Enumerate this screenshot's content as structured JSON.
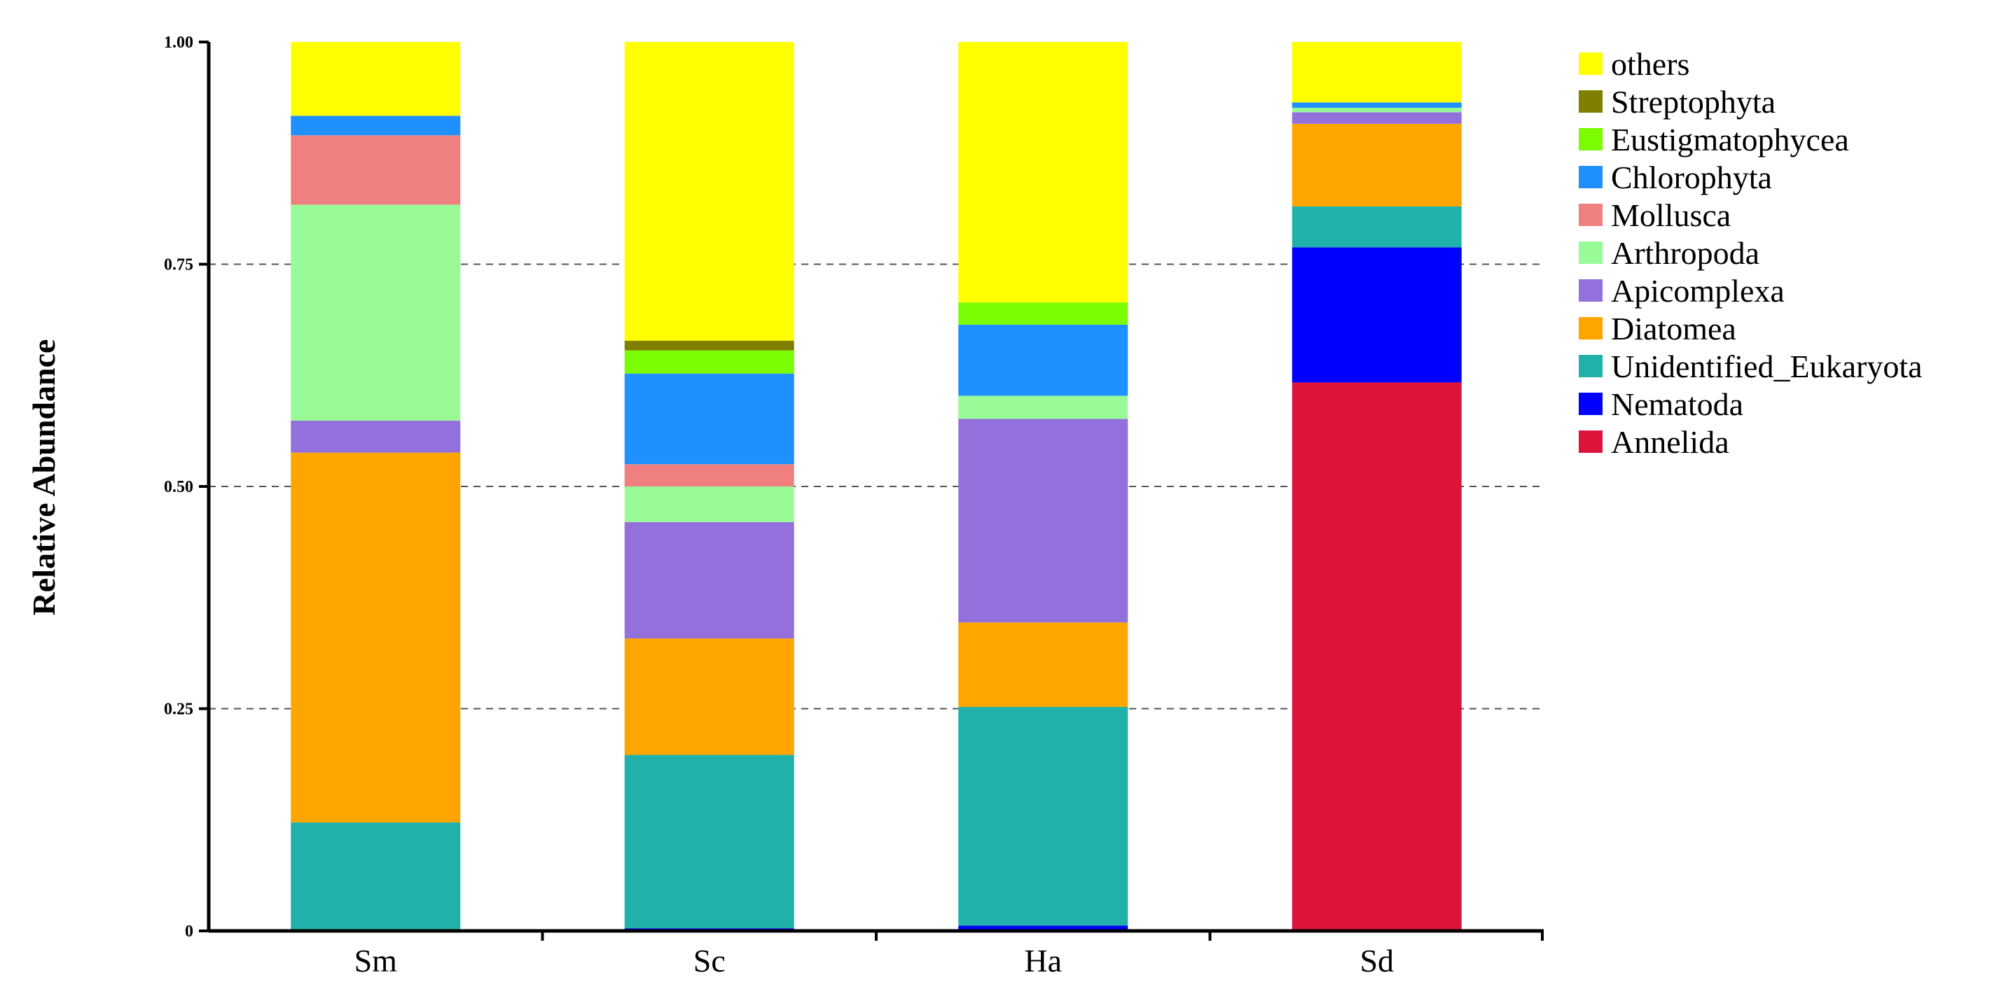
{
  "chart_data": {
    "type": "bar",
    "stacked": true,
    "title": "",
    "xlabel": "",
    "ylabel": "Relative Abundance",
    "ylim": [
      0,
      1
    ],
    "y_ticks": [
      "0",
      "0.25",
      "0.50",
      "0.75",
      "1.00"
    ],
    "grid": "horizontal dashed",
    "legend_position": "right",
    "categories": [
      "Sm",
      "Sc",
      "Ha",
      "Sd"
    ],
    "series": [
      {
        "name": "Annelida",
        "color": "#DC143C",
        "values": [
          0.0,
          0.0,
          0.0,
          0.617
        ]
      },
      {
        "name": "Nematoda",
        "color": "#0000FF",
        "values": [
          0.0,
          0.003,
          0.006,
          0.152
        ]
      },
      {
        "name": "Unidentified_Eukaryota",
        "color": "#20B2AA",
        "values": [
          0.122,
          0.195,
          0.246,
          0.046
        ]
      },
      {
        "name": "Diatomea",
        "color": "#FFA500",
        "values": [
          0.416,
          0.131,
          0.095,
          0.093
        ]
      },
      {
        "name": "Apicomplexa",
        "color": "#9370DB",
        "values": [
          0.036,
          0.131,
          0.229,
          0.013
        ]
      },
      {
        "name": "Arthropoda",
        "color": "#98FB98",
        "values": [
          0.243,
          0.04,
          0.026,
          0.005
        ]
      },
      {
        "name": "Mollusca",
        "color": "#F08080",
        "values": [
          0.078,
          0.025,
          0.0,
          0.0
        ]
      },
      {
        "name": "Chlorophyta",
        "color": "#1E90FF",
        "values": [
          0.022,
          0.102,
          0.08,
          0.006
        ]
      },
      {
        "name": "Eustigmatophycea",
        "color": "#7CFC00",
        "values": [
          0.0,
          0.026,
          0.025,
          0.0
        ]
      },
      {
        "name": "Streptophyta",
        "color": "#808000",
        "values": [
          0.0,
          0.011,
          0.0,
          0.0
        ]
      },
      {
        "name": "others",
        "color": "#FFFF00",
        "values": [
          0.083,
          0.336,
          0.293,
          0.068
        ]
      }
    ]
  }
}
